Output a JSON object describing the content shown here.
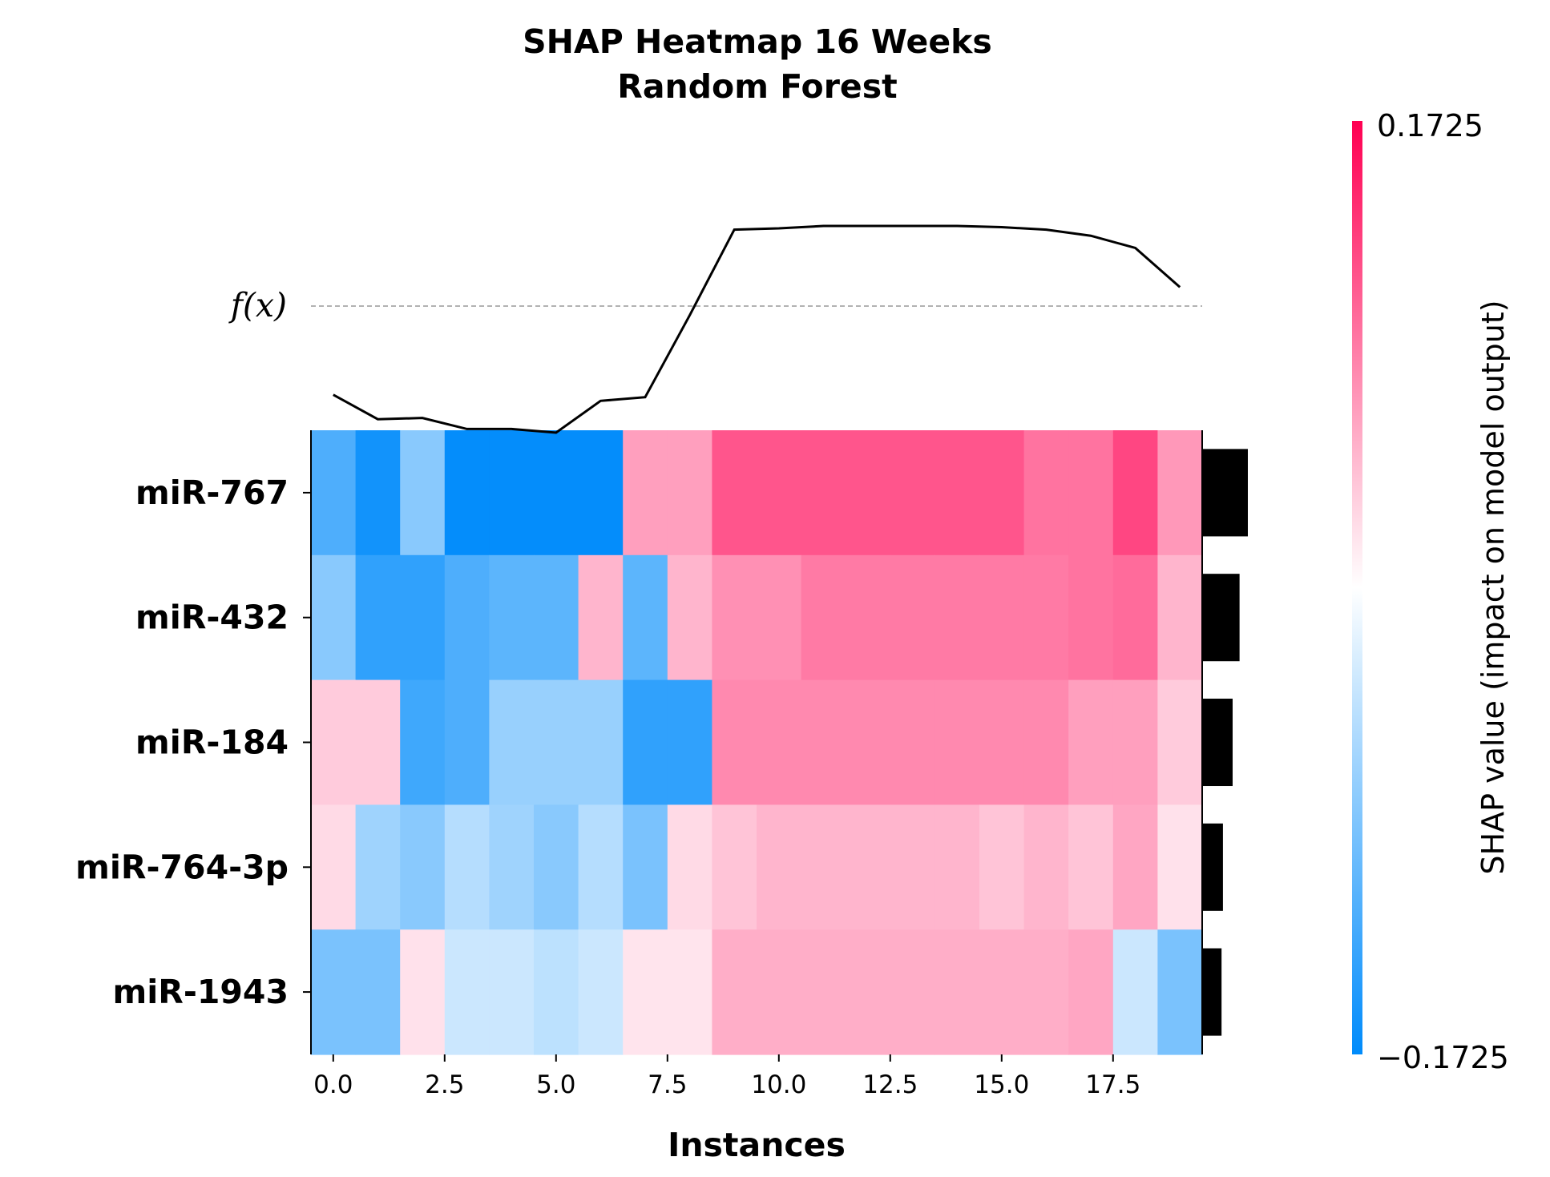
{
  "chart_data": {
    "type": "heatmap",
    "title": [
      "SHAP Heatmap 16 Weeks",
      "Random Forest"
    ],
    "xlabel": "Instances",
    "fx_label": "f(x)",
    "x_ticks": [
      "0.0",
      "2.5",
      "5.0",
      "7.5",
      "10.0",
      "12.5",
      "15.0",
      "17.5"
    ],
    "x_tick_values": [
      0,
      2.5,
      5,
      7.5,
      10,
      12.5,
      15,
      17.5
    ],
    "xlim": [
      -0.5,
      19.5
    ],
    "instances": [
      0,
      1,
      2,
      3,
      4,
      5,
      6,
      7,
      8,
      9,
      10,
      11,
      12,
      13,
      14,
      15,
      16,
      17,
      18,
      19
    ],
    "features": [
      "miR-767",
      "miR-432",
      "miR-184",
      "miR-764-3p",
      "miR-1943"
    ],
    "shap_values": [
      [
        -0.12,
        -0.16,
        -0.08,
        -0.17,
        -0.17,
        -0.17,
        -0.17,
        0.065,
        0.065,
        0.115,
        0.115,
        0.115,
        0.115,
        0.115,
        0.115,
        0.115,
        0.095,
        0.095,
        0.125,
        0.07
      ],
      [
        -0.08,
        -0.14,
        -0.14,
        -0.12,
        -0.11,
        -0.11,
        0.05,
        -0.11,
        0.05,
        0.075,
        0.075,
        0.09,
        0.09,
        0.09,
        0.09,
        0.09,
        0.09,
        0.095,
        0.1,
        0.05
      ],
      [
        0.035,
        0.035,
        -0.13,
        -0.12,
        -0.07,
        -0.07,
        -0.07,
        -0.14,
        -0.14,
        0.08,
        0.08,
        0.08,
        0.08,
        0.08,
        0.08,
        0.08,
        0.08,
        0.065,
        0.065,
        0.035
      ],
      [
        0.025,
        -0.065,
        -0.08,
        -0.05,
        -0.065,
        -0.08,
        -0.05,
        -0.09,
        0.025,
        0.04,
        0.05,
        0.05,
        0.05,
        0.05,
        0.05,
        0.04,
        0.05,
        0.04,
        0.06,
        0.02
      ],
      [
        -0.09,
        -0.09,
        0.02,
        -0.035,
        -0.035,
        -0.045,
        -0.035,
        0.018,
        0.018,
        0.055,
        0.055,
        0.055,
        0.055,
        0.055,
        0.055,
        0.055,
        0.055,
        0.06,
        -0.035,
        -0.09
      ]
    ],
    "fx_values": [
      -0.5,
      -0.7,
      -0.69,
      -0.78,
      -0.78,
      -0.81,
      -0.55,
      -0.52,
      0.15,
      0.85,
      0.86,
      0.88,
      0.88,
      0.88,
      0.88,
      0.87,
      0.85,
      0.8,
      0.7,
      0.38
    ],
    "fx_baseline": 0.28,
    "feature_importance": [
      0.165,
      0.135,
      0.11,
      0.075,
      0.07
    ],
    "colorbar": {
      "min": -0.1725,
      "max": 0.1725,
      "min_label": "−0.1725",
      "max_label": "0.1725",
      "label": "SHAP value (impact on model output)",
      "color_low": "#008bfb",
      "color_mid": "#ffffff",
      "color_high": "#ff0052"
    },
    "grid": false
  }
}
